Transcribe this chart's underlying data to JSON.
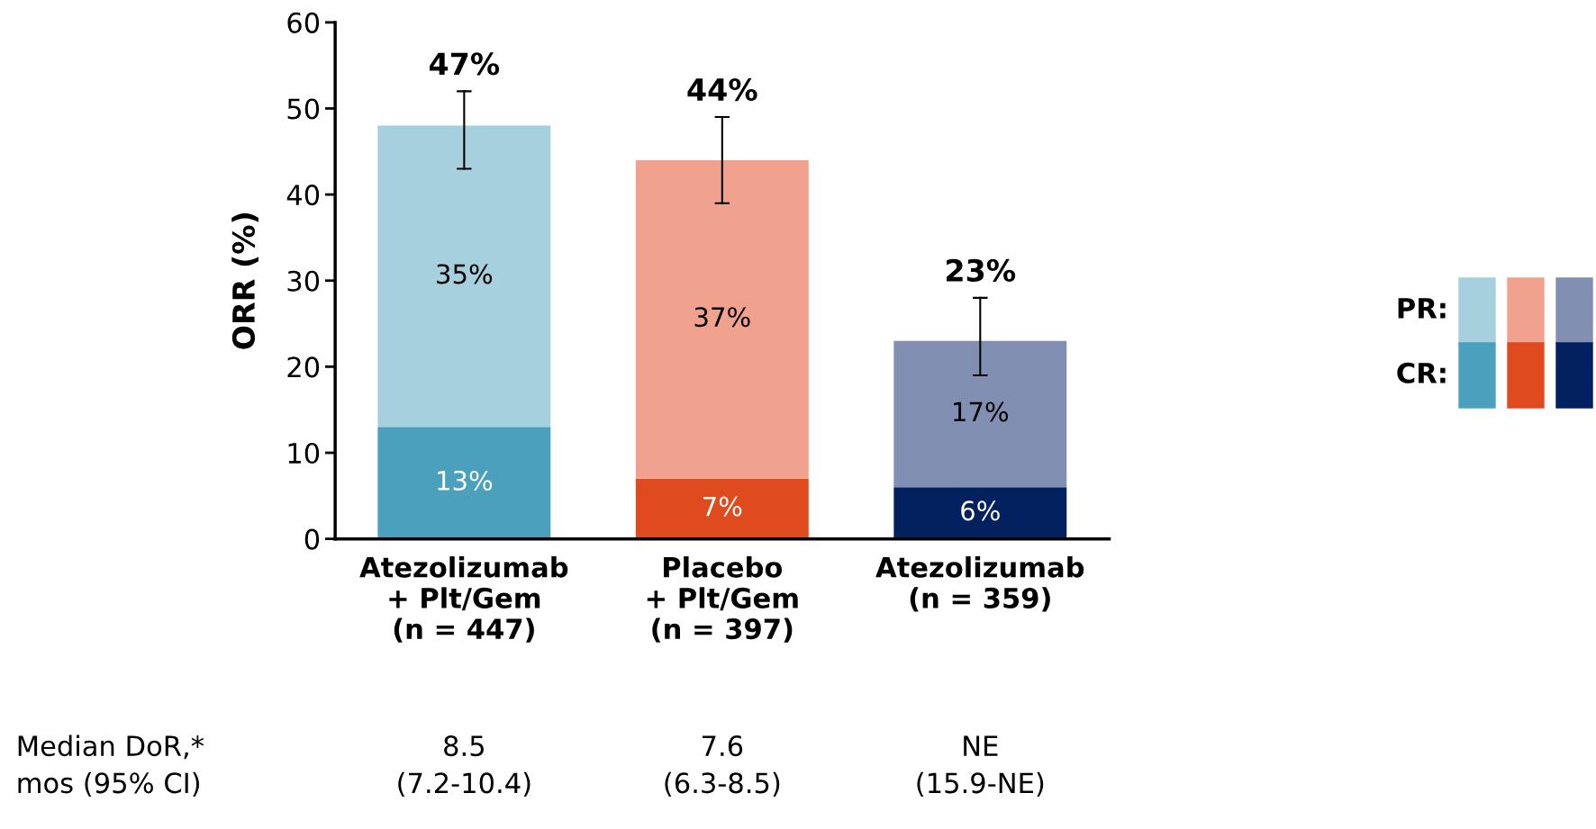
{
  "chart_data": {
    "type": "bar",
    "stacked": true,
    "ylabel": "ORR (%)",
    "categories": [
      "Atezolizumab\n+ Plt/Gem\n(n = 447)",
      "Placebo\n+ Plt/Gem\n(n = 397)",
      "Atezolizumab\n(n = 359)"
    ],
    "series": [
      {
        "name": "CR:",
        "colors": [
          "#4ba1bd",
          "#e04a1f",
          "#03215f"
        ],
        "values": [
          13,
          7,
          6
        ],
        "value_labels": [
          "13%",
          "7%",
          "6%"
        ]
      },
      {
        "name": "PR:",
        "colors": [
          "#a6d0de",
          "#f0a28e",
          "#8190b2"
        ],
        "values": [
          35,
          37,
          17
        ],
        "value_labels": [
          "35%",
          "37%",
          "17%"
        ],
        "errors": [
          [
            43,
            52
          ],
          [
            39,
            49
          ],
          [
            19,
            28
          ]
        ]
      }
    ],
    "totals": [
      "47%",
      "44%",
      "23%"
    ],
    "ylim": [
      0,
      60
    ],
    "yticks": [
      0,
      10,
      20,
      30,
      40,
      50,
      60
    ],
    "grid": false,
    "legend": "right",
    "annotations": [
      "Median DoR,*\nmos (95% CI)",
      "8.5\n(7.2-10.4)",
      "7.6\n(6.3-8.5)",
      "NE\n(15.9-NE)"
    ]
  }
}
